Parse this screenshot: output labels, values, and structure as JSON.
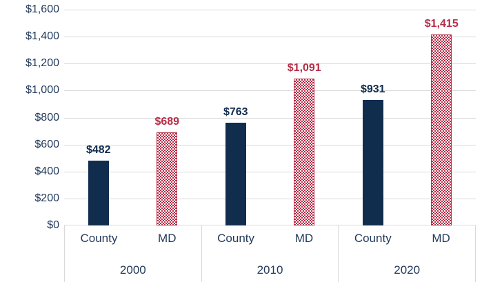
{
  "chart_data": {
    "type": "bar",
    "groups": [
      "2000",
      "2010",
      "2020"
    ],
    "series": [
      {
        "name": "County",
        "values": [
          482,
          763,
          931
        ],
        "value_labels": [
          "$482",
          "$763",
          "$931"
        ],
        "color": "#112D4E",
        "label_color": "#112D4E",
        "fill": "solid"
      },
      {
        "name": "MD",
        "values": [
          689,
          1091,
          1415
        ],
        "value_labels": [
          "$689",
          "$1,091",
          "$1,415"
        ],
        "color": "#B72C46",
        "label_color": "#B72C46",
        "fill": "checker"
      }
    ],
    "y_axis": {
      "ticks": [
        "$1,600",
        "$1,400",
        "$1,200",
        "$1,000",
        "$800",
        "$600",
        "$400",
        "$200",
        "$0"
      ],
      "min": 0,
      "max": 1600,
      "step": 200
    },
    "title": "",
    "xlabel": "",
    "ylabel": "",
    "grid": "horizontal",
    "legend": "none",
    "colors": {
      "axis_text": "#223A5C",
      "gridline": "#D9D9D9",
      "background": "#FFFFFF"
    }
  }
}
